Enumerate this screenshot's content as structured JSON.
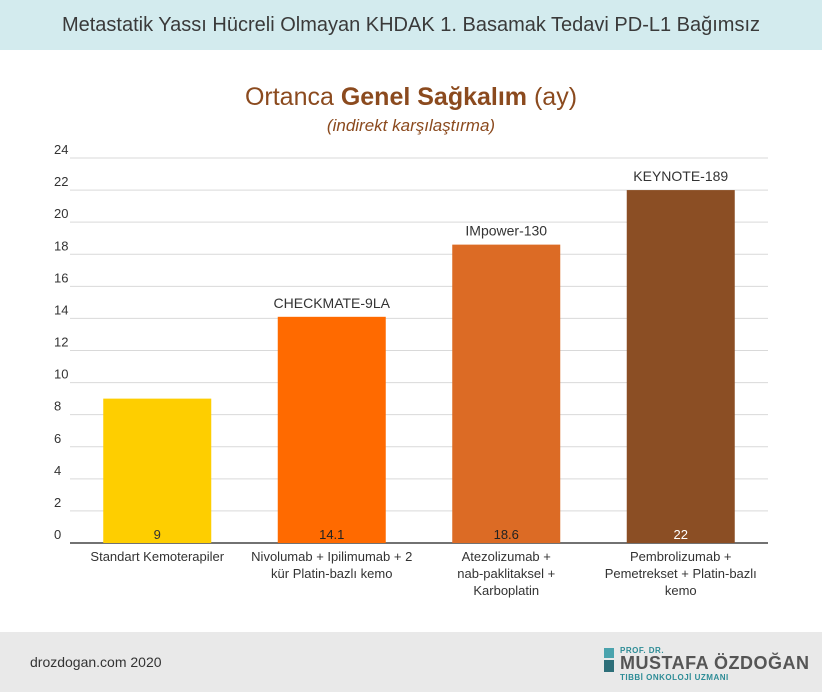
{
  "header": {
    "title": "Metastatik Yassı Hücreli Olmayan KHDAK 1. Basamak Tedavi PD-L1 Bağımsız"
  },
  "chart_title": {
    "prefix": "Ortanca ",
    "bold": "Genel Sağkalım",
    "suffix": " (ay)"
  },
  "chart_subtitle": "(indirekt karşılaştırma)",
  "chart_data": {
    "type": "bar",
    "title": "Ortanca Genel Sağkalım (ay)",
    "subtitle": "(indirekt karşılaştırma)",
    "categories": [
      [
        "Standart Kemoterapiler"
      ],
      [
        "Nivolumab + Ipilimumab + 2",
        "kür Platin-bazlı kemo"
      ],
      [
        "Atezolizumab +",
        "nab-paklitaksel +",
        "Karboplatin"
      ],
      [
        "Pembrolizumab +",
        "Pemetrekset + Platin-bazlı",
        "kemo"
      ]
    ],
    "values": [
      9,
      14.1,
      18.6,
      22
    ],
    "value_labels": [
      "9",
      "14.1",
      "18.6",
      "22"
    ],
    "bar_top_labels": [
      "",
      "CHECKMATE-9LA",
      "IMpower-130",
      "KEYNOTE-189"
    ],
    "bar_colors": [
      "#fece00",
      "#ff6a00",
      "#dc6b25",
      "#8b4e24"
    ],
    "value_label_colors": [
      "#333333",
      "#222222",
      "#222222",
      "#ffffff"
    ],
    "ylim": [
      0,
      24
    ],
    "yticks": [
      0,
      2,
      4,
      6,
      8,
      10,
      12,
      14,
      16,
      18,
      20,
      22,
      24
    ],
    "grid": true
  },
  "footer": {
    "site": "drozdogan.com 2020",
    "logo_small": "PROF. DR.",
    "logo_name": "MUSTAFA ÖZDOĞAN",
    "logo_sub": "TIBBİ ONKOLOJİ UZMANI"
  }
}
